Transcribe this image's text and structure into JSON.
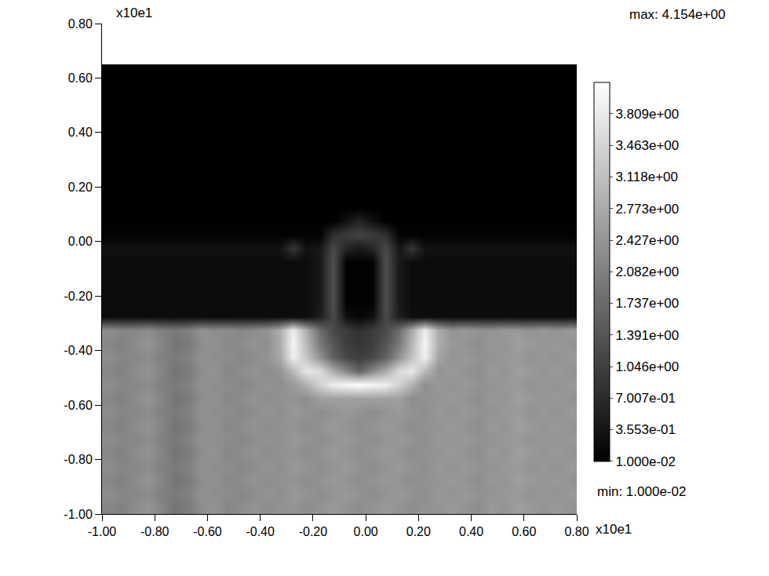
{
  "chart_data": {
    "type": "heatmap",
    "x_scale_label": "x10e1",
    "y_scale_label": "x10e1",
    "max_label": "max: 4.154e+00",
    "min_label": "min: 1.000e-02",
    "xlim": [
      -1.0,
      0.8
    ],
    "ylim": [
      -1.0,
      0.8
    ],
    "xticks": [
      {
        "value": -1.0,
        "label": "-1.00"
      },
      {
        "value": -0.8,
        "label": "-0.80"
      },
      {
        "value": -0.6,
        "label": "-0.60"
      },
      {
        "value": -0.4,
        "label": "-0.40"
      },
      {
        "value": -0.2,
        "label": "-0.20"
      },
      {
        "value": 0.0,
        "label": "0.00"
      },
      {
        "value": 0.2,
        "label": "0.20"
      },
      {
        "value": 0.4,
        "label": "0.40"
      },
      {
        "value": 0.6,
        "label": "0.60"
      },
      {
        "value": 0.8,
        "label": "0.80"
      }
    ],
    "yticks": [
      {
        "value": -1.0,
        "label": "-1.00"
      },
      {
        "value": -0.8,
        "label": "-0.80"
      },
      {
        "value": -0.6,
        "label": "-0.60"
      },
      {
        "value": -0.4,
        "label": "-0.40"
      },
      {
        "value": -0.2,
        "label": "-0.20"
      },
      {
        "value": 0.0,
        "label": "0.00"
      },
      {
        "value": 0.2,
        "label": "0.20"
      },
      {
        "value": 0.4,
        "label": "0.40"
      },
      {
        "value": 0.6,
        "label": "0.60"
      },
      {
        "value": 0.8,
        "label": "0.80"
      }
    ],
    "zlim": [
      0.01,
      4.154
    ],
    "colorbar_ticks": [
      {
        "value": 3.809,
        "label": "3.809e+00"
      },
      {
        "value": 3.463,
        "label": "3.463e+00"
      },
      {
        "value": 3.118,
        "label": "3.118e+00"
      },
      {
        "value": 2.773,
        "label": "2.773e+00"
      },
      {
        "value": 2.427,
        "label": "2.427e+00"
      },
      {
        "value": 2.082,
        "label": "2.082e+00"
      },
      {
        "value": 1.737,
        "label": "1.737e+00"
      },
      {
        "value": 1.391,
        "label": "1.391e+00"
      },
      {
        "value": 1.046,
        "label": "1.046e+00"
      },
      {
        "value": 0.7007,
        "label": "7.007e-01"
      },
      {
        "value": 0.3553,
        "label": "3.553e-01"
      },
      {
        "value": 0.01,
        "label": "1.000e-02"
      }
    ],
    "grid": false,
    "x_edges": [
      -1.0,
      -0.95,
      -0.9,
      -0.85,
      -0.8,
      -0.75,
      -0.7,
      -0.65,
      -0.6,
      -0.55,
      -0.5,
      -0.45,
      -0.4,
      -0.35,
      -0.3,
      -0.25,
      -0.2,
      -0.15,
      -0.1,
      -0.05,
      0.0,
      0.05,
      0.1,
      0.15,
      0.2,
      0.25,
      0.3,
      0.35,
      0.4,
      0.45,
      0.5,
      0.55,
      0.6,
      0.65,
      0.7,
      0.75,
      0.8
    ],
    "y_edges": [
      -1.0,
      -0.95,
      -0.9,
      -0.85,
      -0.8,
      -0.75,
      -0.7,
      -0.65,
      -0.6,
      -0.55,
      -0.5,
      -0.45,
      -0.4,
      -0.35,
      -0.3,
      -0.25,
      -0.2,
      -0.15,
      -0.1,
      -0.05,
      0.0,
      0.05,
      0.1,
      0.15,
      0.2,
      0.25,
      0.3,
      0.35,
      0.4,
      0.45,
      0.5,
      0.55,
      0.6,
      0.65
    ],
    "z": [
      [
        2.2,
        2.1,
        2.3,
        2.4,
        2.2,
        1.9,
        2.0,
        2.3,
        2.4,
        2.2,
        2.3,
        2.4,
        2.3,
        2.4,
        2.4,
        2.3,
        2.4,
        2.5,
        2.4,
        2.3,
        2.4,
        2.5,
        2.4,
        2.3,
        2.4,
        2.4,
        2.5,
        2.4,
        2.3,
        2.5,
        2.4,
        2.6,
        2.5,
        2.4,
        2.5,
        2.4
      ],
      [
        2.3,
        2.2,
        2.2,
        2.3,
        2.1,
        2.0,
        2.1,
        2.4,
        2.3,
        2.3,
        2.2,
        2.3,
        2.4,
        2.3,
        2.5,
        2.4,
        2.3,
        2.4,
        2.5,
        2.4,
        2.3,
        2.4,
        2.5,
        2.4,
        2.3,
        2.5,
        2.4,
        2.5,
        2.4,
        2.4,
        2.5,
        2.5,
        2.4,
        2.5,
        2.4,
        2.5
      ],
      [
        2.2,
        2.1,
        2.3,
        2.4,
        2.2,
        1.9,
        2.0,
        2.3,
        2.4,
        2.2,
        2.3,
        2.4,
        2.3,
        2.4,
        2.4,
        2.3,
        2.4,
        2.5,
        2.4,
        2.3,
        2.4,
        2.5,
        2.4,
        2.3,
        2.4,
        2.4,
        2.5,
        2.4,
        2.3,
        2.5,
        2.4,
        2.6,
        2.5,
        2.4,
        2.5,
        2.4
      ],
      [
        2.3,
        2.2,
        2.2,
        2.3,
        2.1,
        2.0,
        2.1,
        2.4,
        2.3,
        2.3,
        2.2,
        2.3,
        2.4,
        2.3,
        2.5,
        2.4,
        2.3,
        2.4,
        2.5,
        2.4,
        2.3,
        2.4,
        2.5,
        2.4,
        2.3,
        2.5,
        2.4,
        2.5,
        2.4,
        2.4,
        2.5,
        2.5,
        2.4,
        2.5,
        2.4,
        2.5
      ],
      [
        2.2,
        2.1,
        2.3,
        2.4,
        2.2,
        1.9,
        2.0,
        2.3,
        2.4,
        2.2,
        2.3,
        2.4,
        2.3,
        2.4,
        2.4,
        2.3,
        2.4,
        2.5,
        2.4,
        2.3,
        2.4,
        2.5,
        2.4,
        2.3,
        2.4,
        2.4,
        2.5,
        2.4,
        2.3,
        2.5,
        2.4,
        2.6,
        2.5,
        2.4,
        2.5,
        2.4
      ],
      [
        2.3,
        2.2,
        2.2,
        2.3,
        2.1,
        2.0,
        2.1,
        2.4,
        2.3,
        2.3,
        2.2,
        2.3,
        2.4,
        2.3,
        2.5,
        2.4,
        2.3,
        2.4,
        2.5,
        2.4,
        2.3,
        2.4,
        2.5,
        2.4,
        2.3,
        2.5,
        2.4,
        2.5,
        2.4,
        2.4,
        2.5,
        2.5,
        2.4,
        2.5,
        2.4,
        2.5
      ],
      [
        2.2,
        2.1,
        2.3,
        2.4,
        2.2,
        1.9,
        2.0,
        2.3,
        2.4,
        2.2,
        2.3,
        2.4,
        2.3,
        2.4,
        2.4,
        2.3,
        2.4,
        2.5,
        2.4,
        2.3,
        2.4,
        2.5,
        2.4,
        2.3,
        2.4,
        2.4,
        2.5,
        2.4,
        2.3,
        2.5,
        2.4,
        2.6,
        2.5,
        2.4,
        2.5,
        2.4
      ],
      [
        2.3,
        2.2,
        2.2,
        2.3,
        2.1,
        2.0,
        2.1,
        2.4,
        2.3,
        2.3,
        2.2,
        2.3,
        2.4,
        2.3,
        2.5,
        2.4,
        2.3,
        2.4,
        2.5,
        2.4,
        2.3,
        2.4,
        2.5,
        2.4,
        2.3,
        2.5,
        2.4,
        2.5,
        2.4,
        2.4,
        2.5,
        2.5,
        2.4,
        2.5,
        2.4,
        2.5
      ],
      [
        2.2,
        2.1,
        2.3,
        2.4,
        2.2,
        1.9,
        2.0,
        2.3,
        2.4,
        2.2,
        2.3,
        2.4,
        2.3,
        2.4,
        2.4,
        2.3,
        2.6,
        2.6,
        2.6,
        2.6,
        2.6,
        2.6,
        2.6,
        2.3,
        2.4,
        2.4,
        2.5,
        2.4,
        2.3,
        2.5,
        2.4,
        2.6,
        2.5,
        2.4,
        2.5,
        2.4
      ],
      [
        2.3,
        2.2,
        2.2,
        2.3,
        2.1,
        2.0,
        2.1,
        2.4,
        2.3,
        2.3,
        2.2,
        2.3,
        2.4,
        2.3,
        2.5,
        2.9,
        3.4,
        3.9,
        4.0,
        4.154,
        4.0,
        3.9,
        3.4,
        2.9,
        2.3,
        2.5,
        2.4,
        2.5,
        2.4,
        2.4,
        2.5,
        2.5,
        2.4,
        2.5,
        2.4,
        2.5
      ],
      [
        2.2,
        2.1,
        2.3,
        2.4,
        2.2,
        1.9,
        2.0,
        2.3,
        2.4,
        2.2,
        2.3,
        2.4,
        2.3,
        2.4,
        3.0,
        3.8,
        3.6,
        2.8,
        2.2,
        1.6,
        2.2,
        2.8,
        3.6,
        3.8,
        3.0,
        2.4,
        2.5,
        2.4,
        2.3,
        2.5,
        2.4,
        2.6,
        2.5,
        2.4,
        2.5,
        2.4
      ],
      [
        2.3,
        2.2,
        2.2,
        2.3,
        2.1,
        2.0,
        2.1,
        2.4,
        2.3,
        2.3,
        2.2,
        2.3,
        2.4,
        2.7,
        3.9,
        3.2,
        2.4,
        1.6,
        1.2,
        1.0,
        1.2,
        1.6,
        2.4,
        3.2,
        3.9,
        2.7,
        2.4,
        2.5,
        2.4,
        2.4,
        2.5,
        2.5,
        2.4,
        2.5,
        2.4,
        2.5
      ],
      [
        2.2,
        2.1,
        2.3,
        2.4,
        2.2,
        1.9,
        2.0,
        2.3,
        2.4,
        2.2,
        2.3,
        2.4,
        2.3,
        2.8,
        4.0,
        3.0,
        2.0,
        1.4,
        1.0,
        0.9,
        1.0,
        1.4,
        2.0,
        3.0,
        4.0,
        2.8,
        2.5,
        2.4,
        2.3,
        2.5,
        2.4,
        2.6,
        2.5,
        2.4,
        2.5,
        2.4
      ],
      [
        2.3,
        2.2,
        2.2,
        2.3,
        2.1,
        2.0,
        2.1,
        2.4,
        2.3,
        2.3,
        2.2,
        2.3,
        2.4,
        2.8,
        3.9,
        2.8,
        1.8,
        1.2,
        1.0,
        0.8,
        1.0,
        1.2,
        1.8,
        2.8,
        3.9,
        2.8,
        2.4,
        2.5,
        2.4,
        2.4,
        2.5,
        2.5,
        2.4,
        2.5,
        2.4,
        2.5
      ],
      [
        0.2,
        0.2,
        0.2,
        0.2,
        0.2,
        0.2,
        0.2,
        0.2,
        0.2,
        0.2,
        0.2,
        0.2,
        0.2,
        0.2,
        0.2,
        0.2,
        0.5,
        1.2,
        0.3,
        0.1,
        0.3,
        1.2,
        0.5,
        0.2,
        0.2,
        0.2,
        0.2,
        0.2,
        0.2,
        0.2,
        0.2,
        0.2,
        0.2,
        0.2,
        0.2,
        0.2
      ],
      [
        0.2,
        0.2,
        0.2,
        0.2,
        0.2,
        0.2,
        0.2,
        0.2,
        0.2,
        0.2,
        0.2,
        0.2,
        0.2,
        0.2,
        0.2,
        0.2,
        0.4,
        1.3,
        0.05,
        0.05,
        0.05,
        1.3,
        0.4,
        0.2,
        0.2,
        0.2,
        0.2,
        0.2,
        0.2,
        0.2,
        0.2,
        0.2,
        0.2,
        0.2,
        0.2,
        0.2
      ],
      [
        0.2,
        0.2,
        0.2,
        0.2,
        0.2,
        0.2,
        0.2,
        0.2,
        0.2,
        0.2,
        0.2,
        0.2,
        0.2,
        0.2,
        0.2,
        0.2,
        0.4,
        1.3,
        0.05,
        0.05,
        0.05,
        1.3,
        0.4,
        0.2,
        0.2,
        0.2,
        0.2,
        0.2,
        0.2,
        0.2,
        0.2,
        0.2,
        0.2,
        0.2,
        0.2,
        0.2
      ],
      [
        0.2,
        0.2,
        0.2,
        0.2,
        0.2,
        0.2,
        0.2,
        0.2,
        0.2,
        0.2,
        0.2,
        0.2,
        0.2,
        0.2,
        0.2,
        0.2,
        0.4,
        1.3,
        0.05,
        0.05,
        0.05,
        1.3,
        0.4,
        0.2,
        0.2,
        0.2,
        0.2,
        0.2,
        0.2,
        0.2,
        0.2,
        0.2,
        0.2,
        0.2,
        0.2,
        0.2
      ],
      [
        0.2,
        0.2,
        0.2,
        0.2,
        0.2,
        0.2,
        0.2,
        0.2,
        0.2,
        0.2,
        0.2,
        0.2,
        0.2,
        0.2,
        0.2,
        0.2,
        0.4,
        1.3,
        0.05,
        0.05,
        0.05,
        1.3,
        0.4,
        0.2,
        0.2,
        0.2,
        0.2,
        0.2,
        0.2,
        0.2,
        0.2,
        0.2,
        0.2,
        0.2,
        0.2,
        0.2
      ],
      [
        0.3,
        0.3,
        0.3,
        0.3,
        0.3,
        0.3,
        0.3,
        0.3,
        0.3,
        0.3,
        0.3,
        0.3,
        0.3,
        0.3,
        0.9,
        0.3,
        0.4,
        1.2,
        0.6,
        0.4,
        0.6,
        1.2,
        0.4,
        0.9,
        0.3,
        0.3,
        0.3,
        0.3,
        0.3,
        0.3,
        0.3,
        0.3,
        0.3,
        0.3,
        0.3,
        0.3
      ],
      [
        0.05,
        0.05,
        0.05,
        0.05,
        0.05,
        0.05,
        0.05,
        0.05,
        0.05,
        0.05,
        0.05,
        0.05,
        0.05,
        0.05,
        0.05,
        0.05,
        0.05,
        0.8,
        1.0,
        1.1,
        1.0,
        0.8,
        0.05,
        0.05,
        0.05,
        0.05,
        0.05,
        0.05,
        0.05,
        0.05,
        0.05,
        0.05,
        0.05,
        0.05,
        0.05,
        0.05
      ],
      [
        0.01,
        0.01,
        0.01,
        0.01,
        0.01,
        0.01,
        0.01,
        0.01,
        0.01,
        0.01,
        0.01,
        0.01,
        0.01,
        0.01,
        0.01,
        0.01,
        0.01,
        0.01,
        0.3,
        0.6,
        0.3,
        0.01,
        0.01,
        0.01,
        0.01,
        0.01,
        0.01,
        0.01,
        0.01,
        0.01,
        0.01,
        0.01,
        0.01,
        0.01,
        0.01,
        0.01
      ],
      [
        0.01,
        0.01,
        0.01,
        0.01,
        0.01,
        0.01,
        0.01,
        0.01,
        0.01,
        0.01,
        0.01,
        0.01,
        0.01,
        0.01,
        0.01,
        0.01,
        0.01,
        0.01,
        0.01,
        0.01,
        0.01,
        0.01,
        0.01,
        0.01,
        0.01,
        0.01,
        0.01,
        0.01,
        0.01,
        0.01,
        0.01,
        0.01,
        0.01,
        0.01,
        0.01,
        0.01
      ],
      [
        0.01,
        0.01,
        0.01,
        0.01,
        0.01,
        0.01,
        0.01,
        0.01,
        0.01,
        0.01,
        0.01,
        0.01,
        0.01,
        0.01,
        0.01,
        0.01,
        0.01,
        0.01,
        0.01,
        0.01,
        0.01,
        0.01,
        0.01,
        0.01,
        0.01,
        0.01,
        0.01,
        0.01,
        0.01,
        0.01,
        0.01,
        0.01,
        0.01,
        0.01,
        0.01,
        0.01
      ],
      [
        0.01,
        0.01,
        0.01,
        0.01,
        0.01,
        0.01,
        0.01,
        0.01,
        0.01,
        0.01,
        0.01,
        0.01,
        0.01,
        0.01,
        0.01,
        0.01,
        0.01,
        0.01,
        0.01,
        0.01,
        0.01,
        0.01,
        0.01,
        0.01,
        0.01,
        0.01,
        0.01,
        0.01,
        0.01,
        0.01,
        0.01,
        0.01,
        0.01,
        0.01,
        0.01,
        0.01
      ],
      [
        0.01,
        0.01,
        0.01,
        0.01,
        0.01,
        0.01,
        0.01,
        0.01,
        0.01,
        0.01,
        0.01,
        0.01,
        0.01,
        0.01,
        0.01,
        0.01,
        0.01,
        0.01,
        0.01,
        0.01,
        0.01,
        0.01,
        0.01,
        0.01,
        0.01,
        0.01,
        0.01,
        0.01,
        0.01,
        0.01,
        0.01,
        0.01,
        0.01,
        0.01,
        0.01,
        0.01
      ],
      [
        0.01,
        0.01,
        0.01,
        0.01,
        0.01,
        0.01,
        0.01,
        0.01,
        0.01,
        0.01,
        0.01,
        0.01,
        0.01,
        0.01,
        0.01,
        0.01,
        0.01,
        0.01,
        0.01,
        0.01,
        0.01,
        0.01,
        0.01,
        0.01,
        0.01,
        0.01,
        0.01,
        0.01,
        0.01,
        0.01,
        0.01,
        0.01,
        0.01,
        0.01,
        0.01,
        0.01
      ],
      [
        0.01,
        0.01,
        0.01,
        0.01,
        0.01,
        0.01,
        0.01,
        0.01,
        0.01,
        0.01,
        0.01,
        0.01,
        0.01,
        0.01,
        0.01,
        0.01,
        0.01,
        0.01,
        0.01,
        0.01,
        0.01,
        0.01,
        0.01,
        0.01,
        0.01,
        0.01,
        0.01,
        0.01,
        0.01,
        0.01,
        0.01,
        0.01,
        0.01,
        0.01,
        0.01,
        0.01
      ],
      [
        0.01,
        0.01,
        0.01,
        0.01,
        0.01,
        0.01,
        0.01,
        0.01,
        0.01,
        0.01,
        0.01,
        0.01,
        0.01,
        0.01,
        0.01,
        0.01,
        0.01,
        0.01,
        0.01,
        0.01,
        0.01,
        0.01,
        0.01,
        0.01,
        0.01,
        0.01,
        0.01,
        0.01,
        0.01,
        0.01,
        0.01,
        0.01,
        0.01,
        0.01,
        0.01,
        0.01
      ],
      [
        0.01,
        0.01,
        0.01,
        0.01,
        0.01,
        0.01,
        0.01,
        0.01,
        0.01,
        0.01,
        0.01,
        0.01,
        0.01,
        0.01,
        0.01,
        0.01,
        0.01,
        0.01,
        0.01,
        0.01,
        0.01,
        0.01,
        0.01,
        0.01,
        0.01,
        0.01,
        0.01,
        0.01,
        0.01,
        0.01,
        0.01,
        0.01,
        0.01,
        0.01,
        0.01,
        0.01
      ],
      [
        0.01,
        0.01,
        0.01,
        0.01,
        0.01,
        0.01,
        0.01,
        0.01,
        0.01,
        0.01,
        0.01,
        0.01,
        0.01,
        0.01,
        0.01,
        0.01,
        0.01,
        0.01,
        0.01,
        0.01,
        0.01,
        0.01,
        0.01,
        0.01,
        0.01,
        0.01,
        0.01,
        0.01,
        0.01,
        0.01,
        0.01,
        0.01,
        0.01,
        0.01,
        0.01,
        0.01
      ],
      [
        0.01,
        0.01,
        0.01,
        0.01,
        0.01,
        0.01,
        0.01,
        0.01,
        0.01,
        0.01,
        0.01,
        0.01,
        0.01,
        0.01,
        0.01,
        0.01,
        0.01,
        0.01,
        0.01,
        0.01,
        0.01,
        0.01,
        0.01,
        0.01,
        0.01,
        0.01,
        0.01,
        0.01,
        0.01,
        0.01,
        0.01,
        0.01,
        0.01,
        0.01,
        0.01,
        0.01
      ],
      [
        0.01,
        0.01,
        0.01,
        0.01,
        0.01,
        0.01,
        0.01,
        0.01,
        0.01,
        0.01,
        0.01,
        0.01,
        0.01,
        0.01,
        0.01,
        0.01,
        0.01,
        0.01,
        0.01,
        0.01,
        0.01,
        0.01,
        0.01,
        0.01,
        0.01,
        0.01,
        0.01,
        0.01,
        0.01,
        0.01,
        0.01,
        0.01,
        0.01,
        0.01,
        0.01,
        0.01
      ]
    ]
  }
}
